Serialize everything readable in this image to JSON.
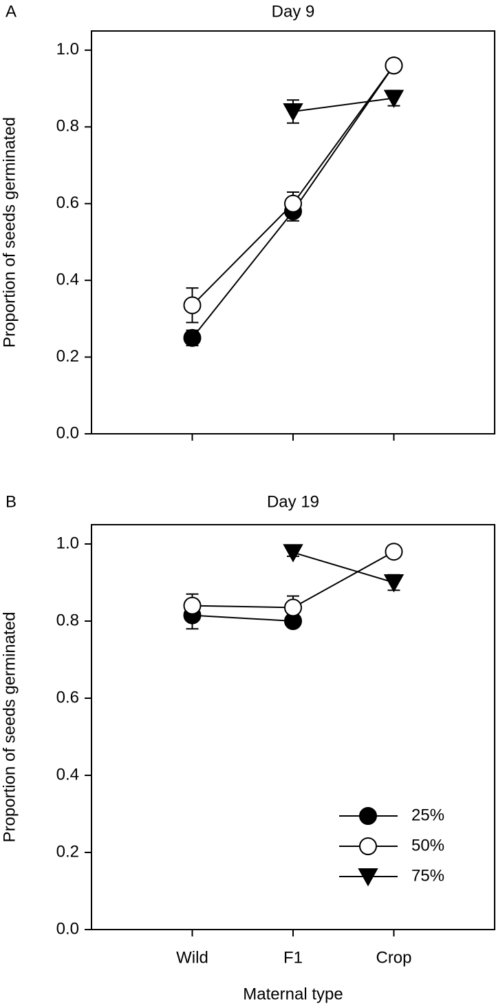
{
  "chart_data": [
    {
      "type": "line",
      "panel_label": "A",
      "title": "Day 9",
      "ylabel": "Proportion of seeds germinated",
      "categories": [
        null,
        null,
        null
      ],
      "ylim": [
        0,
        1.05
      ],
      "yticks": [
        {
          "value": 0,
          "label": "0.0"
        },
        0.2,
        0.4,
        0.6,
        0.8,
        {
          "value": 1,
          "label": "1.0"
        }
      ],
      "series": [
        {
          "marker": "filled-circle",
          "color": "#000000",
          "values": [
            0.25,
            0.58,
            0.96
          ],
          "errors": [
            0.02,
            0.025,
            0.015
          ]
        },
        {
          "marker": "open-circle",
          "color": "#000000",
          "values": [
            0.335,
            0.6,
            0.96
          ],
          "errors": [
            0.045,
            0.03,
            0.015
          ]
        },
        {
          "marker": "down-triangle",
          "color": "#000000",
          "values": [
            null,
            0.84,
            0.875
          ],
          "errors": [
            null,
            0.03,
            0.02
          ]
        }
      ]
    },
    {
      "type": "line",
      "panel_label": "B",
      "title": "Day 19",
      "ylabel": "Proportion of seeds germinated",
      "xlabel": "Maternal type",
      "categories": [
        "Wild",
        "F1",
        "Crop"
      ],
      "ylim": [
        0,
        1.05
      ],
      "yticks": [
        {
          "value": 0,
          "label": "0.0"
        },
        0.2,
        0.4,
        0.6,
        0.8,
        {
          "value": 1,
          "label": "1.0"
        }
      ],
      "legend": "lower right",
      "series": [
        {
          "name": "25%",
          "marker": "filled-circle",
          "color": "#000000",
          "values": [
            0.815,
            0.8,
            null
          ],
          "errors": [
            0.035,
            0.015,
            null
          ]
        },
        {
          "name": "50%",
          "marker": "open-circle",
          "color": "#000000",
          "values": [
            0.84,
            0.835,
            0.98
          ],
          "errors": [
            0.03,
            0.03,
            0.015
          ]
        },
        {
          "name": "75%",
          "marker": "down-triangle",
          "color": "#000000",
          "values": [
            null,
            0.978,
            0.9
          ],
          "errors": [
            null,
            0.01,
            0.02
          ]
        }
      ]
    }
  ]
}
